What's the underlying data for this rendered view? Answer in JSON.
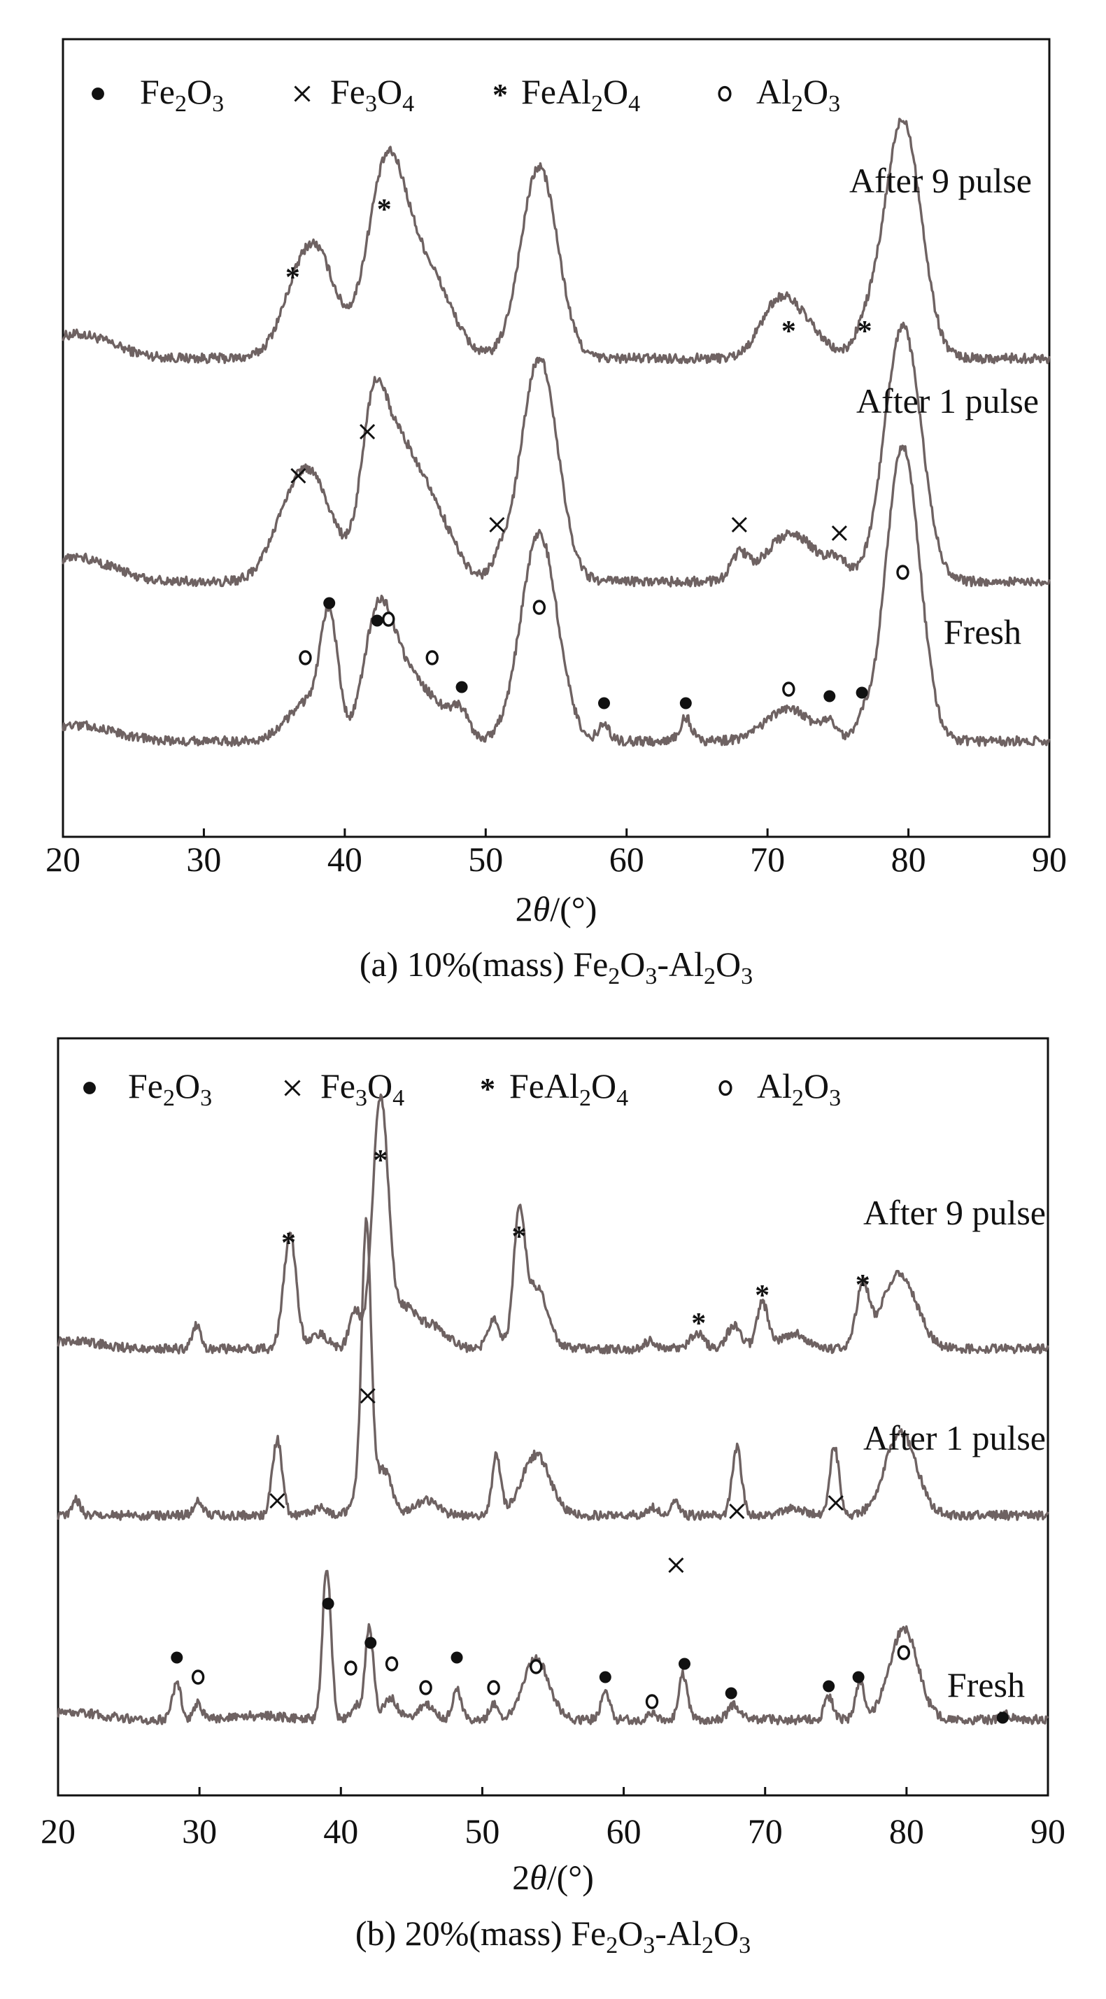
{
  "chart_data": [
    {
      "type": "line",
      "caption": "(a) 10%(mass) Fe2O3-Al2O3",
      "caption_parts": {
        "lead": "(a) 10%(mass) Fe",
        "s1": "2",
        "m1": "O",
        "s2": "3",
        "m2": "-Al",
        "s3": "2",
        "m3": "O",
        "s4": "3"
      },
      "xlabel": "2θ/(°)",
      "xlabel_parts": {
        "a": "2",
        "b": "θ",
        "c": "/(°)"
      },
      "xlim": [
        20,
        90
      ],
      "xticks": [
        "20",
        "30",
        "40",
        "50",
        "60",
        "70",
        "80",
        "90"
      ],
      "ylabel": "",
      "legend": [
        {
          "marker": "dot",
          "base": "Fe",
          "s1": "2",
          "m": "O",
          "s2": "3",
          "name": "Fe2O3"
        },
        {
          "marker": "cross",
          "base": "Fe",
          "s1": "3",
          "m": "O",
          "s2": "4",
          "name": "Fe3O4"
        },
        {
          "marker": "star",
          "base": "FeAl",
          "s1": "2",
          "m": "O",
          "s2": "4",
          "name": "FeAl2O4"
        },
        {
          "marker": "ring",
          "base": "Al",
          "s1": "2",
          "m": "O",
          "s2": "3",
          "name": "Al2O3"
        }
      ],
      "series": [
        {
          "name": "After 9 pulse",
          "label": "After 9 pulse",
          "baseline": 0.6,
          "broad": [
            [
              21,
              0.03,
              2.5
            ],
            [
              37,
              0.1,
              1.4
            ],
            [
              38.5,
              0.07,
              1.2
            ],
            [
              43,
              0.24,
              1.4
            ],
            [
              46,
              0.1,
              1.6
            ],
            [
              53.8,
              0.24,
              1.3
            ],
            [
              70.5,
              0.04,
              1.2
            ],
            [
              72,
              0.05,
              1.6
            ],
            [
              77,
              0.03,
              0.8
            ],
            [
              79.6,
              0.3,
              1.3
            ]
          ],
          "markers": [
            {
              "type": "star",
              "x": 36.3
            },
            {
              "type": "star",
              "x": 42.8
            },
            {
              "type": "star",
              "x": 71.5
            },
            {
              "type": "star",
              "x": 76.9
            }
          ]
        },
        {
          "name": "After 1 pulse",
          "label": "After 1 pulse",
          "baseline": 0.32,
          "broad": [
            [
              21,
              0.03,
              2.5
            ],
            [
              36.5,
              0.1,
              1.5
            ],
            [
              38.2,
              0.07,
              1.3
            ],
            [
              42,
              0.12,
              0.8
            ],
            [
              43.3,
              0.17,
              1.6
            ],
            [
              46.2,
              0.08,
              1.5
            ],
            [
              51,
              0.02,
              0.6
            ],
            [
              53.8,
              0.28,
              1.3
            ],
            [
              68,
              0.03,
              0.6
            ],
            [
              71.7,
              0.06,
              1.8
            ],
            [
              75,
              0.02,
              0.7
            ],
            [
              79.6,
              0.32,
              1.3
            ]
          ],
          "markers": [
            {
              "type": "cross",
              "x": 36.7
            },
            {
              "type": "cross",
              "x": 41.6
            },
            {
              "type": "cross",
              "x": 50.8
            },
            {
              "type": "cross",
              "x": 68.0
            },
            {
              "type": "cross",
              "x": 75.1
            }
          ]
        },
        {
          "name": "Fresh",
          "label": "Fresh",
          "baseline": 0.12,
          "broad": [
            [
              21,
              0.02,
              2.5
            ],
            [
              37.4,
              0.05,
              1.4
            ],
            [
              38.9,
              0.14,
              0.6
            ],
            [
              42.2,
              0.1,
              0.9
            ],
            [
              43.3,
              0.1,
              1.3
            ],
            [
              46,
              0.05,
              1.4
            ],
            [
              48.2,
              0.03,
              0.6
            ],
            [
              53.8,
              0.26,
              1.3
            ],
            [
              58.4,
              0.02,
              0.4
            ],
            [
              64.2,
              0.03,
              0.4
            ],
            [
              71.5,
              0.04,
              1.6
            ],
            [
              74.4,
              0.02,
              0.5
            ],
            [
              76.7,
              0.02,
              0.5
            ],
            [
              79.6,
              0.37,
              1.2
            ]
          ],
          "markers": [
            {
              "type": "ring",
              "x": 37.2
            },
            {
              "type": "dot",
              "x": 38.9
            },
            {
              "type": "dot",
              "x": 42.3
            },
            {
              "type": "ring",
              "x": 43.1
            },
            {
              "type": "ring",
              "x": 46.2
            },
            {
              "type": "dot",
              "x": 48.3
            },
            {
              "type": "ring",
              "x": 53.8
            },
            {
              "type": "dot",
              "x": 58.4
            },
            {
              "type": "dot",
              "x": 64.2
            },
            {
              "type": "ring",
              "x": 71.5
            },
            {
              "type": "dot",
              "x": 74.4
            },
            {
              "type": "dot",
              "x": 76.7
            },
            {
              "type": "ring",
              "x": 79.6
            }
          ]
        }
      ]
    },
    {
      "type": "line",
      "caption": "(b) 20%(mass) Fe2O3-Al2O3",
      "caption_parts": {
        "lead": "(b) 20%(mass) Fe",
        "s1": "2",
        "m1": "O",
        "s2": "3",
        "m2": "-Al",
        "s3": "2",
        "m3": "O",
        "s4": "3"
      },
      "xlabel": "2θ/(°)",
      "xlabel_parts": {
        "a": "2",
        "b": "θ",
        "c": "/(°)"
      },
      "xlim": [
        20,
        90
      ],
      "xticks": [
        "20",
        "30",
        "40",
        "50",
        "60",
        "70",
        "80",
        "90"
      ],
      "ylabel": "",
      "legend": [
        {
          "marker": "dot",
          "base": "Fe",
          "s1": "2",
          "m": "O",
          "s2": "3",
          "name": "Fe2O3"
        },
        {
          "marker": "cross",
          "base": "Fe",
          "s1": "3",
          "m": "O",
          "s2": "4",
          "name": "Fe3O4"
        },
        {
          "marker": "star",
          "base": "FeAl",
          "s1": "2",
          "m": "O",
          "s2": "4",
          "name": "FeAl2O4"
        },
        {
          "marker": "ring",
          "base": "Al",
          "s1": "2",
          "m": "O",
          "s2": "3",
          "name": "Al2O3"
        }
      ],
      "series": [
        {
          "name": "After 9 pulse",
          "label": "After 9 pulse",
          "baseline": 0.59,
          "broad": [
            [
              21,
              0.01,
              2
            ],
            [
              29.8,
              0.03,
              0.3
            ],
            [
              36.4,
              0.15,
              0.45
            ],
            [
              38.5,
              0.02,
              0.6
            ],
            [
              41,
              0.05,
              0.4
            ],
            [
              42.8,
              0.33,
              0.55
            ],
            [
              44.5,
              0.05,
              0.8
            ],
            [
              46.5,
              0.03,
              1
            ],
            [
              50.8,
              0.04,
              0.4
            ],
            [
              52.6,
              0.16,
              0.4
            ],
            [
              53.8,
              0.08,
              0.8
            ],
            [
              61.8,
              0.01,
              0.4
            ],
            [
              65.2,
              0.02,
              0.5
            ],
            [
              67.8,
              0.03,
              0.5
            ],
            [
              69.8,
              0.06,
              0.4
            ],
            [
              72,
              0.02,
              1
            ],
            [
              76.9,
              0.08,
              0.45
            ],
            [
              79.5,
              0.1,
              1.2
            ]
          ],
          "markers": [
            {
              "type": "star",
              "x": 36.3
            },
            {
              "type": "star",
              "x": 42.8
            },
            {
              "type": "star",
              "x": 52.6
            },
            {
              "type": "star",
              "x": 65.3
            },
            {
              "type": "star",
              "x": 69.8
            },
            {
              "type": "star",
              "x": 76.9
            }
          ]
        },
        {
          "name": "After 1 pulse",
          "label": "After 1 pulse",
          "baseline": 0.37,
          "broad": [
            [
              21.3,
              0.02,
              0.3
            ],
            [
              29.9,
              0.02,
              0.3
            ],
            [
              35.5,
              0.1,
              0.35
            ],
            [
              38.5,
              0.01,
              0.6
            ],
            [
              41,
              0.02,
              0.4
            ],
            [
              41.8,
              0.38,
              0.33
            ],
            [
              43,
              0.06,
              0.6
            ],
            [
              46,
              0.02,
              0.8
            ],
            [
              51,
              0.08,
              0.3
            ],
            [
              53.8,
              0.08,
              1
            ],
            [
              62,
              0.01,
              0.4
            ],
            [
              63.6,
              0.02,
              0.3
            ],
            [
              68,
              0.09,
              0.33
            ],
            [
              72,
              0.01,
              0.8
            ],
            [
              74.9,
              0.09,
              0.33
            ],
            [
              79.6,
              0.11,
              1.1
            ]
          ],
          "markers": [
            {
              "type": "cross",
              "x": 35.5
            },
            {
              "type": "cross",
              "x": 41.9
            },
            {
              "type": "cross",
              "x": 63.7
            },
            {
              "type": "cross",
              "x": 68.0
            },
            {
              "type": "cross",
              "x": 75.0
            }
          ]
        },
        {
          "name": "Fresh",
          "label": "Fresh",
          "baseline": 0.1,
          "broad": [
            [
              21,
              0.01,
              2
            ],
            [
              28.4,
              0.05,
              0.3
            ],
            [
              29.9,
              0.02,
              0.3
            ],
            [
              34,
              0.005,
              2
            ],
            [
              39,
              0.2,
              0.3
            ],
            [
              41,
              0.02,
              0.3
            ],
            [
              42,
              0.12,
              0.3
            ],
            [
              43.5,
              0.03,
              0.5
            ],
            [
              46,
              0.02,
              0.6
            ],
            [
              48.2,
              0.04,
              0.3
            ],
            [
              50.8,
              0.02,
              0.3
            ],
            [
              53.8,
              0.08,
              0.9
            ],
            [
              58.7,
              0.04,
              0.3
            ],
            [
              62,
              0.01,
              0.3
            ],
            [
              64.2,
              0.06,
              0.3
            ],
            [
              67.8,
              0.02,
              0.4
            ],
            [
              74.5,
              0.03,
              0.3
            ],
            [
              76.7,
              0.05,
              0.3
            ],
            [
              79.8,
              0.12,
              1.0
            ],
            [
              87,
              0.01,
              0.3
            ]
          ],
          "markers": [
            {
              "type": "dot",
              "x": 28.4
            },
            {
              "type": "ring",
              "x": 29.9
            },
            {
              "type": "dot",
              "x": 39.1
            },
            {
              "type": "ring",
              "x": 40.7
            },
            {
              "type": "dot",
              "x": 42.1
            },
            {
              "type": "ring",
              "x": 43.6
            },
            {
              "type": "ring",
              "x": 46.0
            },
            {
              "type": "dot",
              "x": 48.2
            },
            {
              "type": "ring",
              "x": 50.8
            },
            {
              "type": "ring",
              "x": 53.8
            },
            {
              "type": "dot",
              "x": 58.7
            },
            {
              "type": "ring",
              "x": 62.0
            },
            {
              "type": "dot",
              "x": 64.3
            },
            {
              "type": "dot",
              "x": 67.6
            },
            {
              "type": "dot",
              "x": 74.5
            },
            {
              "type": "dot",
              "x": 76.6
            },
            {
              "type": "ring",
              "x": 79.8
            },
            {
              "type": "dot",
              "x": 86.8
            }
          ]
        }
      ]
    }
  ]
}
